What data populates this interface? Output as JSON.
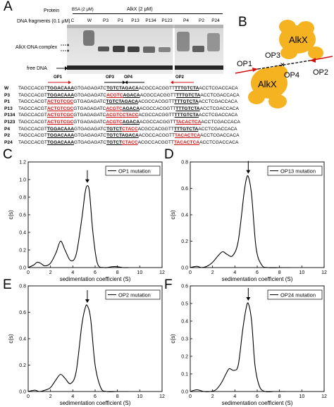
{
  "panels": {
    "a": "A",
    "b": "B",
    "c": "C",
    "d": "D",
    "e": "E",
    "f": "F"
  },
  "gel": {
    "protein_label": "Protein",
    "dna_label": "DNA fragments (0.1 μM)",
    "bsa_label": "BSA (2 μM)",
    "alkx_label": "AlkX (2 μM)",
    "lanes": [
      "C",
      "W",
      "P3",
      "P1",
      "P13",
      "P134",
      "P123",
      "P4",
      "P2",
      "P24"
    ],
    "complex_label": "AlkX-DNA complex",
    "free_label": "free DNA"
  },
  "operators": {
    "op1": "OP1",
    "op2": "OP2",
    "op3": "OP3",
    "op4": "OP4"
  },
  "diagram": {
    "protein": "AlkX",
    "labels": [
      "OP1",
      "OP3",
      "OP4",
      "OP2"
    ]
  },
  "sequences": [
    {
      "name": "W",
      "segs": [
        [
          "TAGCCACGT",
          ""
        ],
        [
          "TGGACAAA",
          "u"
        ],
        [
          "GTGAGAGATC",
          ""
        ],
        [
          "TGTCTAGACA",
          "u"
        ],
        [
          "ACGCCACGGTT",
          ""
        ],
        [
          "TTTGTCTA",
          "u"
        ],
        [
          "ACCTCGACCACA",
          ""
        ]
      ]
    },
    {
      "name": "P3",
      "segs": [
        [
          "TAGCCACGT",
          ""
        ],
        [
          "TGGACAAA",
          "u"
        ],
        [
          "GTGAGAGATC",
          ""
        ],
        [
          "ACGTC",
          "ur"
        ],
        [
          "AGACA",
          "u"
        ],
        [
          "ACGCCACGGTT",
          ""
        ],
        [
          "TTTGTCTA",
          "u"
        ],
        [
          "ACCTCGACCACA",
          ""
        ]
      ]
    },
    {
      "name": "P1",
      "segs": [
        [
          "TAGCCACGT",
          ""
        ],
        [
          "ACTGTCGC",
          "ur"
        ],
        [
          "GTGAGAGATC",
          ""
        ],
        [
          "TGTCTAGACA",
          "u"
        ],
        [
          "ACGCCACGGTT",
          ""
        ],
        [
          "TTTGTCTA",
          "u"
        ],
        [
          "ACCTCGACCACA",
          ""
        ]
      ]
    },
    {
      "name": "P13",
      "segs": [
        [
          "TAGCCACGT",
          ""
        ],
        [
          "ACTGTCGC",
          "ur"
        ],
        [
          "GTGAGAGATC",
          ""
        ],
        [
          "ACGTC",
          "ur"
        ],
        [
          "AGACA",
          "u"
        ],
        [
          "ACGCCACGGTT",
          ""
        ],
        [
          "TTTGTCTA",
          "u"
        ],
        [
          "ACCTCGACCACA",
          ""
        ]
      ]
    },
    {
      "name": "P134",
      "segs": [
        [
          "TAGCCACGT",
          ""
        ],
        [
          "ACTGTCGC",
          "ur"
        ],
        [
          "GTGAGAGATC",
          ""
        ],
        [
          "ACGTCCTACC",
          "ur"
        ],
        [
          "ACGCCACGGTT",
          ""
        ],
        [
          "TTTGTCTA",
          "u"
        ],
        [
          "ACCTCGACCACA",
          ""
        ]
      ]
    },
    {
      "name": "P123",
      "segs": [
        [
          "TAGCCACGT",
          ""
        ],
        [
          "ACTGTCGC",
          "ur"
        ],
        [
          "GTGAGAGATC",
          ""
        ],
        [
          "ACGTC",
          "ur"
        ],
        [
          "AGACA",
          "u"
        ],
        [
          "ACGCCACGGTT",
          ""
        ],
        [
          "TACACTCA",
          "ur"
        ],
        [
          "ACCTCGACCACA",
          ""
        ]
      ]
    },
    {
      "name": "P4",
      "segs": [
        [
          "TAGCCACGT",
          ""
        ],
        [
          "TGGACAAA",
          "u"
        ],
        [
          "GTGAGAGATC",
          ""
        ],
        [
          "TGTCT",
          "u"
        ],
        [
          "CTACC",
          "ur"
        ],
        [
          "ACGCCACGGTT",
          ""
        ],
        [
          "TTTGTCTA",
          "u"
        ],
        [
          "ACCTCGACCACA",
          ""
        ]
      ]
    },
    {
      "name": "P2",
      "segs": [
        [
          "TAGCCACGT",
          ""
        ],
        [
          "TGGACAAA",
          "u"
        ],
        [
          "GTGAGAGATC",
          ""
        ],
        [
          "TGTCTAGACA",
          "u"
        ],
        [
          "ACGCCACGGTT",
          ""
        ],
        [
          "TACACTCA",
          "ur"
        ],
        [
          "ACCTCGACCACA",
          ""
        ]
      ]
    },
    {
      "name": "P24",
      "segs": [
        [
          "TAGCCACGT",
          ""
        ],
        [
          "TGGACAAA",
          "u"
        ],
        [
          "GTGAGAGATC",
          ""
        ],
        [
          "TGTCT",
          "u"
        ],
        [
          "CTACC",
          "ur"
        ],
        [
          "ACGCCACGGTT",
          ""
        ],
        [
          "TACACTCA",
          "ur"
        ],
        [
          "ACCTCGACCACA",
          ""
        ]
      ]
    }
  ],
  "chart_data": [
    {
      "type": "line",
      "legend": "OP1 mutation",
      "xlabel": "sedimentation coefficient (S)",
      "ylabel": "c(s)",
      "xlim": [
        0,
        12
      ],
      "ylim": [
        0,
        1.2
      ],
      "xticks": [
        0,
        2,
        4,
        6,
        8,
        10,
        12
      ],
      "yticks": [
        0.0,
        0.2,
        0.4,
        0.6,
        0.8,
        1.0,
        1.2
      ],
      "ytick_labels": [
        "0.0",
        "0.2",
        "0.4",
        "0.6",
        "0.8",
        "1.0",
        "1.2"
      ],
      "x": [
        0,
        0.5,
        0.8,
        1.1,
        1.5,
        2.0,
        2.5,
        2.9,
        3.3,
        3.8,
        4.3,
        4.8,
        5.1,
        5.3,
        5.5,
        5.8,
        6.2,
        6.8,
        7.5,
        8.0,
        8.5,
        9.0
      ],
      "y": [
        0.0,
        0.03,
        0.06,
        0.05,
        0.02,
        0.05,
        0.17,
        0.3,
        0.2,
        0.08,
        0.15,
        0.55,
        0.85,
        0.93,
        0.85,
        0.4,
        0.05,
        0.0,
        0.01,
        0.01,
        0.0,
        0.0
      ]
    },
    {
      "type": "line",
      "legend": "OP13 mutation",
      "xlabel": "sedimentation coefficient (S)",
      "ylabel": "c(s)",
      "xlim": [
        0,
        12
      ],
      "ylim": [
        0,
        0.8
      ],
      "xticks": [
        0,
        2,
        4,
        6,
        8,
        10,
        12
      ],
      "yticks": [
        0.0,
        0.2,
        0.4,
        0.6,
        0.8
      ],
      "ytick_labels": [
        "0.0",
        "0.2",
        "0.4",
        "0.6",
        "0.8"
      ],
      "x": [
        0,
        0.6,
        1.0,
        1.5,
        2.0,
        2.5,
        2.9,
        3.3,
        3.8,
        4.3,
        4.8,
        5.0,
        5.2,
        5.5,
        5.9,
        6.4,
        7.0,
        8.0,
        9.0
      ],
      "y": [
        0.0,
        0.01,
        0.0,
        0.01,
        0.04,
        0.09,
        0.12,
        0.1,
        0.09,
        0.2,
        0.55,
        0.66,
        0.69,
        0.55,
        0.15,
        0.02,
        0.0,
        0.0,
        0.0
      ]
    },
    {
      "type": "line",
      "legend": "OP2 mutation",
      "xlabel": "sedimentation coefficient (S)",
      "ylabel": "c(s)",
      "xlim": [
        0,
        12
      ],
      "ylim": [
        0,
        0.8
      ],
      "xticks": [
        0,
        2,
        4,
        6,
        8,
        10,
        12
      ],
      "yticks": [
        0.0,
        0.2,
        0.4,
        0.6,
        0.8
      ],
      "ytick_labels": [
        "0.0",
        "0.2",
        "0.4",
        "0.6",
        "0.8"
      ],
      "x": [
        0,
        0.6,
        1.0,
        1.5,
        2.0,
        2.5,
        2.9,
        3.3,
        3.8,
        4.3,
        4.8,
        5.1,
        5.3,
        5.6,
        6.0,
        6.5,
        7.0,
        8.0,
        9.0
      ],
      "y": [
        0.0,
        0.01,
        0.0,
        0.01,
        0.03,
        0.09,
        0.13,
        0.1,
        0.06,
        0.15,
        0.5,
        0.63,
        0.65,
        0.55,
        0.2,
        0.03,
        0.0,
        0.0,
        0.0
      ]
    },
    {
      "type": "line",
      "legend": "OP24 mutation",
      "xlabel": "sedimentation coefficient (S)",
      "ylabel": "c(s)",
      "xlim": [
        0,
        12
      ],
      "ylim": [
        0,
        0.6
      ],
      "xticks": [
        0,
        2,
        4,
        6,
        8,
        10,
        12
      ],
      "yticks": [
        0.0,
        0.1,
        0.2,
        0.3,
        0.4,
        0.5,
        0.6
      ],
      "ytick_labels": [
        "0.0",
        "0.1",
        "0.2",
        "0.3",
        "0.4",
        "0.5",
        "0.6"
      ],
      "x": [
        0,
        0.6,
        1.2,
        1.8,
        2.3,
        2.8,
        3.2,
        3.5,
        3.9,
        4.3,
        4.7,
        5.0,
        5.2,
        5.5,
        5.8,
        6.2,
        6.7,
        7.5,
        8.5
      ],
      "y": [
        0.0,
        0.01,
        0.0,
        0.0,
        0.01,
        0.05,
        0.1,
        0.13,
        0.12,
        0.15,
        0.35,
        0.47,
        0.5,
        0.4,
        0.15,
        0.03,
        0.0,
        0.0,
        0.0
      ]
    }
  ]
}
